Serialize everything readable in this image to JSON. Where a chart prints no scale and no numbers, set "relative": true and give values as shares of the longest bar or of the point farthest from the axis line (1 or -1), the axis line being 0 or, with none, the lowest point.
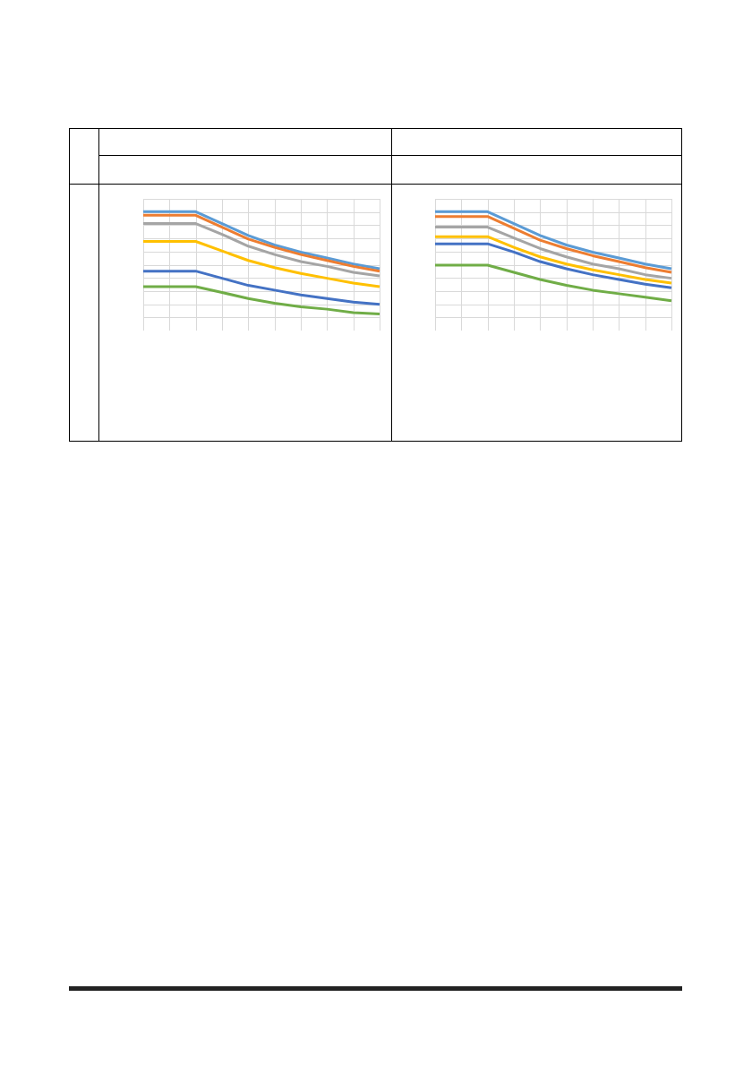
{
  "chart_data": [
    {
      "type": "line",
      "relative": true,
      "grid": true,
      "categories": [
        null,
        null,
        null,
        null,
        null,
        null,
        null,
        null,
        null,
        null
      ],
      "series": [
        {
          "color": "#5b9bd5",
          "values": [
            1,
            1,
            1,
            0.9,
            0.8,
            0.72,
            0.66,
            0.61,
            0.56,
            0.52
          ]
        },
        {
          "color": "#ed7d31",
          "values": [
            0.97,
            0.97,
            0.97,
            0.87,
            0.77,
            0.7,
            0.64,
            0.59,
            0.54,
            0.5
          ]
        },
        {
          "color": "#a5a5a5",
          "values": [
            0.9,
            0.9,
            0.9,
            0.81,
            0.71,
            0.64,
            0.58,
            0.54,
            0.49,
            0.46
          ]
        },
        {
          "color": "#ffc000",
          "values": [
            0.75,
            0.75,
            0.75,
            0.67,
            0.59,
            0.53,
            0.48,
            0.44,
            0.4,
            0.37
          ]
        },
        {
          "color": "#4472c4",
          "values": [
            0.5,
            0.5,
            0.5,
            0.44,
            0.38,
            0.34,
            0.3,
            0.27,
            0.24,
            0.22
          ]
        },
        {
          "color": "#70ad47",
          "values": [
            0.37,
            0.37,
            0.37,
            0.32,
            0.27,
            0.23,
            0.2,
            0.18,
            0.15,
            0.14
          ]
        }
      ]
    },
    {
      "type": "line",
      "relative": true,
      "grid": true,
      "categories": [
        null,
        null,
        null,
        null,
        null,
        null,
        null,
        null,
        null,
        null
      ],
      "series": [
        {
          "color": "#5b9bd5",
          "values": [
            1,
            1,
            1,
            0.9,
            0.8,
            0.72,
            0.66,
            0.61,
            0.56,
            0.52
          ]
        },
        {
          "color": "#ed7d31",
          "values": [
            0.96,
            0.96,
            0.96,
            0.86,
            0.76,
            0.69,
            0.63,
            0.58,
            0.53,
            0.49
          ]
        },
        {
          "color": "#a5a5a5",
          "values": [
            0.87,
            0.87,
            0.87,
            0.78,
            0.69,
            0.62,
            0.56,
            0.52,
            0.47,
            0.44
          ]
        },
        {
          "color": "#ffc000",
          "values": [
            0.79,
            0.79,
            0.79,
            0.7,
            0.62,
            0.56,
            0.51,
            0.47,
            0.43,
            0.4
          ]
        },
        {
          "color": "#4472c4",
          "values": [
            0.73,
            0.73,
            0.73,
            0.66,
            0.58,
            0.52,
            0.47,
            0.43,
            0.39,
            0.36
          ]
        },
        {
          "color": "#70ad47",
          "values": [
            0.55,
            0.55,
            0.55,
            0.49,
            0.43,
            0.38,
            0.34,
            0.31,
            0.28,
            0.25
          ]
        }
      ]
    }
  ]
}
